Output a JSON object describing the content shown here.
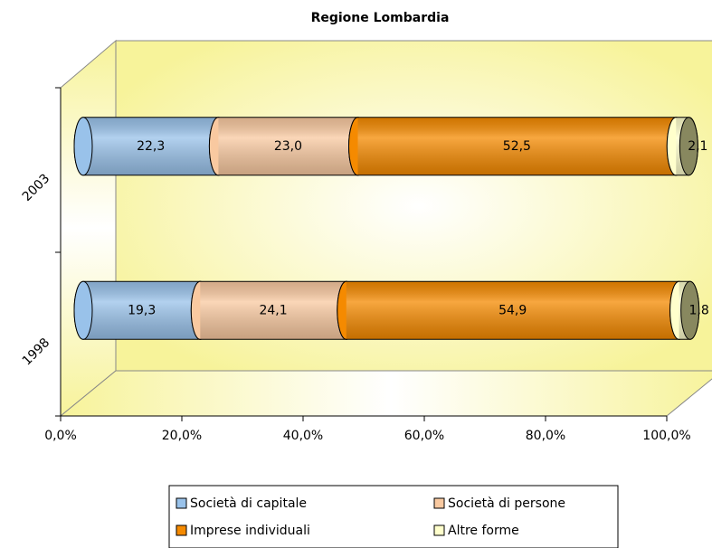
{
  "chart_data": {
    "type": "bar",
    "orientation": "horizontal",
    "stacked": true,
    "title": "Regione Lombardia",
    "categories": [
      "1998",
      "2003"
    ],
    "series": [
      {
        "name": "Società di capitale",
        "color": "#99c2ea",
        "values": [
          19.3,
          22.3
        ],
        "value_labels": [
          "19,3",
          "22,3"
        ]
      },
      {
        "name": "Società di persone",
        "color": "#f9c9a0",
        "values": [
          24.1,
          23.0
        ],
        "value_labels": [
          "24,1",
          "23,0"
        ]
      },
      {
        "name": "Imprese individuali",
        "color": "#f58a00",
        "values": [
          54.9,
          52.5
        ],
        "value_labels": [
          "54,9",
          "52,5"
        ]
      },
      {
        "name": "Altre forme",
        "color": "#ffffcc",
        "values": [
          1.8,
          2.1
        ],
        "value_labels": [
          "1,8",
          "2,1"
        ]
      }
    ],
    "xlim": [
      0,
      100
    ],
    "xticks": [
      {
        "value": 0,
        "label": "0,0%"
      },
      {
        "value": 20,
        "label": "20,0%"
      },
      {
        "value": 40,
        "label": "40,0%"
      },
      {
        "value": 60,
        "label": "60,0%"
      },
      {
        "value": 80,
        "label": "80,0%"
      },
      {
        "value": 100,
        "label": "100,0%"
      }
    ],
    "legend": "bottom"
  }
}
